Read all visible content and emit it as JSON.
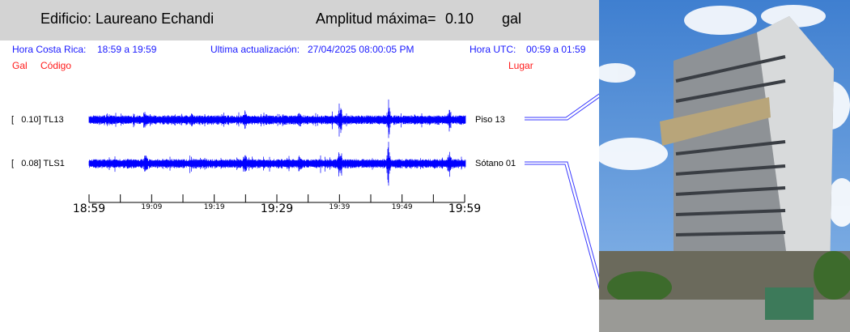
{
  "header": {
    "building": "Edificio: Laureano Echandi",
    "amp_label": "Amplitud máxima=",
    "amp_value": "0.10",
    "amp_unit": "gal"
  },
  "info": {
    "local_label": "Hora Costa Rica:",
    "local_range": "18:59 a 19:59",
    "update_label": "Ultima actualización:",
    "update_value": "27/04/2025 08:00:05 PM",
    "utc_label": "Hora UTC:",
    "utc_range": "00:59 a 01:59"
  },
  "columns": {
    "gal": "Gal",
    "code": "Código",
    "place": "Lugar"
  },
  "channels": [
    {
      "gal": "0.10",
      "code": "TL13",
      "label": "[   0.10] TL13",
      "place": "Piso 13"
    },
    {
      "gal": "0.08",
      "code": "TLS1",
      "label": "[   0.08] TLS1",
      "place": "Sótano 01"
    }
  ],
  "time_axis": {
    "major": [
      "18:59",
      "19:29",
      "19:59"
    ],
    "minor": [
      "19:09",
      "19:19",
      "19:39",
      "19:49"
    ]
  },
  "colors": {
    "trace": "#0000ff",
    "info": "#1a1aff",
    "columns": "#ff1a1a",
    "header_bg": "#d3d3d3"
  }
}
